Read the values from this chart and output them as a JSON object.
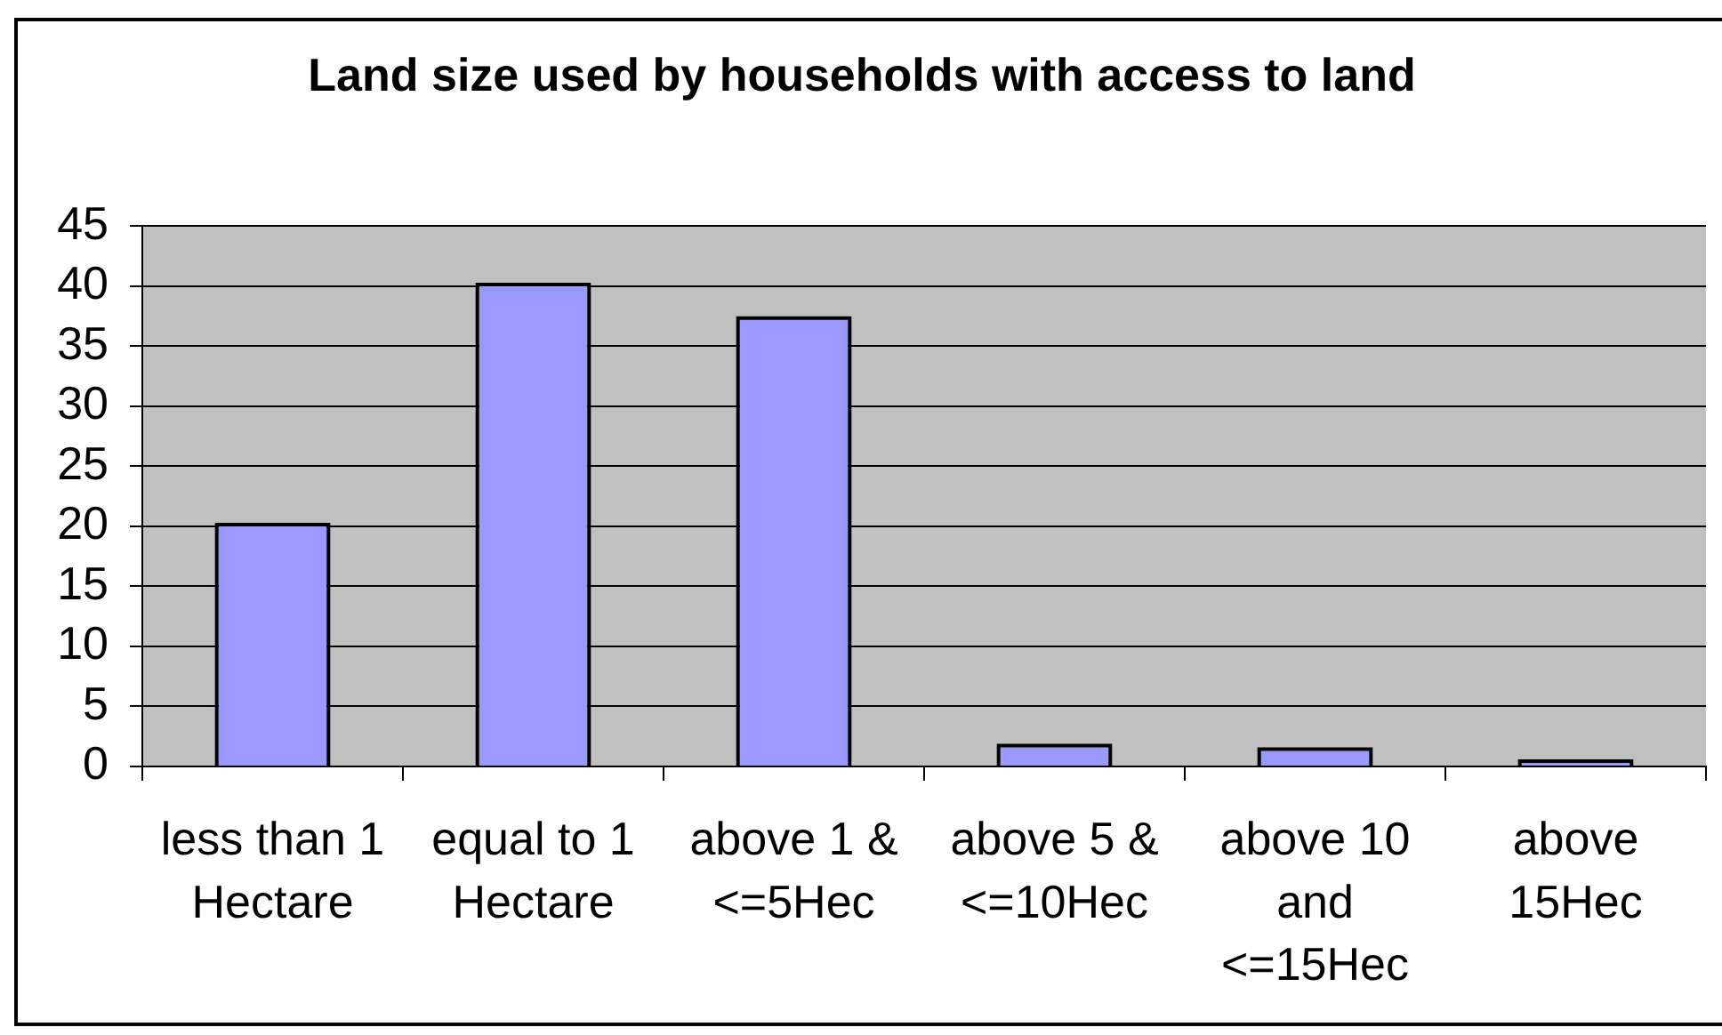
{
  "chart_data": {
    "type": "bar",
    "title": "Land size used by households with access to land",
    "categories": [
      "less than 1 Hectare",
      "equal to 1 Hectare",
      "above 1 & <=5Hec",
      "above 5 & <=10Hec",
      "above 10 and <=15Hec",
      "above 15Hec"
    ],
    "values": [
      20,
      40,
      37.2,
      1.6,
      1.3,
      0.3
    ],
    "color": "#9999ff",
    "ylim": [
      0,
      45
    ],
    "yticks": [
      0,
      5,
      10,
      15,
      20,
      25,
      30,
      35,
      40,
      45
    ],
    "grid": "y"
  }
}
